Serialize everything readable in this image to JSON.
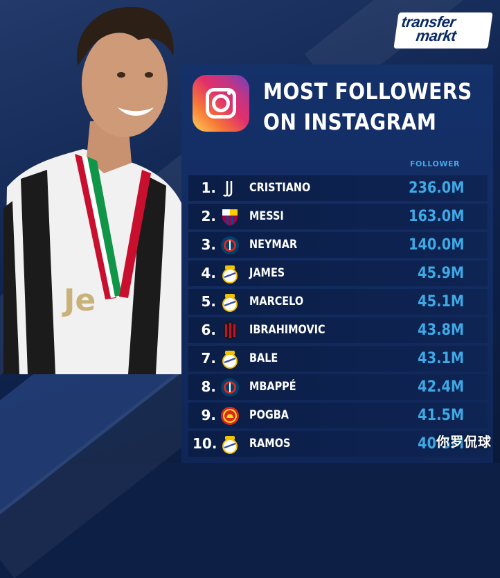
{
  "brand": {
    "logo_line1": "transfer",
    "logo_line2": "markt"
  },
  "title": {
    "line1": "MOST FOLLOWERS",
    "line2": "ON INSTAGRAM"
  },
  "column_header": "FOLLOWER",
  "colors": {
    "accent": "#3fa9e6",
    "background": "#0f2657",
    "row": "#0b1e47",
    "text": "#ffffff"
  },
  "ranking": [
    {
      "rank": "1.",
      "club_icon": "juventus-crest-icon",
      "name": "CRISTIANO",
      "followers": "236.0M"
    },
    {
      "rank": "2.",
      "club_icon": "barcelona-crest-icon",
      "name": "MESSI",
      "followers": "163.0M"
    },
    {
      "rank": "3.",
      "club_icon": "psg-crest-icon",
      "name": "NEYMAR",
      "followers": "140.0M"
    },
    {
      "rank": "4.",
      "club_icon": "real-madrid-crest-icon",
      "name": "JAMES",
      "followers": "45.9M"
    },
    {
      "rank": "5.",
      "club_icon": "real-madrid-crest-icon",
      "name": "MARCELO",
      "followers": "45.1M"
    },
    {
      "rank": "6.",
      "club_icon": "ac-milan-crest-icon",
      "name": "IBRAHIMOVIC",
      "followers": "43.8M"
    },
    {
      "rank": "7.",
      "club_icon": "real-madrid-crest-icon",
      "name": "BALE",
      "followers": "43.1M"
    },
    {
      "rank": "8.",
      "club_icon": "psg-crest-icon",
      "name": "MBAPPÉ",
      "followers": "42.4M"
    },
    {
      "rank": "9.",
      "club_icon": "manchester-united-crest-icon",
      "name": "POGBA",
      "followers": "41.5M"
    },
    {
      "rank": "10.",
      "club_icon": "real-madrid-crest-icon",
      "name": "RAMOS",
      "followers": "40.5M"
    }
  ],
  "watermark": "你罗侃球"
}
